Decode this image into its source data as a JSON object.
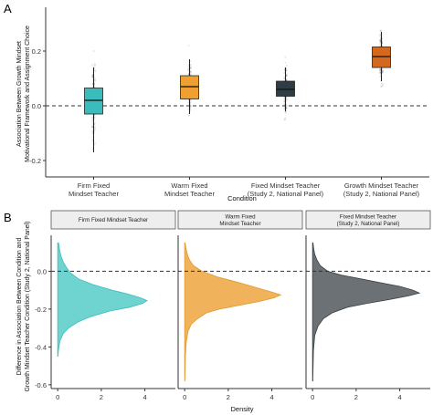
{
  "figure": {
    "panel_a_letter": "A",
    "panel_b_letter": "B"
  },
  "chart_data": [
    {
      "type": "box",
      "panel": "A",
      "xlabel": "Condition",
      "ylabel_line1": "Association Between Growth Mindset",
      "ylabel_line2": "Motivational Framework and Assignment Choice",
      "ylim": [
        -0.26,
        0.36
      ],
      "yticks": [
        -0.2,
        0.0,
        0.2
      ],
      "ytick_labels": [
        "-0.2",
        "0.0",
        "0.2"
      ],
      "reference_line": 0,
      "grid": false,
      "categories": [
        {
          "label_lines": [
            "Firm Fixed",
            "Mindset Teacher"
          ],
          "color": "#3bbcbc",
          "min": -0.17,
          "q1": -0.03,
          "median": 0.02,
          "q3": 0.065,
          "max": 0.14,
          "points_low": -0.24,
          "points_high": 0.2
        },
        {
          "label_lines": [
            "Warm Fixed",
            "Mindset Teacher"
          ],
          "color": "#f0a030",
          "min": -0.03,
          "q1": 0.025,
          "median": 0.07,
          "q3": 0.11,
          "max": 0.17,
          "points_low": -0.1,
          "points_high": 0.22
        },
        {
          "label_lines": [
            "Fixed Mindset Teacher",
            "(Study 2, National Panel)"
          ],
          "color": "#2e3d44",
          "min": -0.02,
          "q1": 0.035,
          "median": 0.06,
          "q3": 0.09,
          "max": 0.14,
          "points_low": -0.08,
          "points_high": 0.2
        },
        {
          "label_lines": [
            "Growth Mindset Teacher",
            "(Study 2, National Panel)"
          ],
          "color": "#d2691e",
          "min": 0.09,
          "q1": 0.14,
          "median": 0.18,
          "q3": 0.215,
          "max": 0.27,
          "points_low": 0.05,
          "points_high": 0.35
        }
      ]
    },
    {
      "type": "density",
      "panel": "B",
      "xlabel": "Density",
      "ylabel_line1": "Difference in Association Between Condition and",
      "ylabel_line2": "Growth Mindset Teacher Condition (Study 2, National Panel)",
      "xlim": [
        -0.3,
        5.4
      ],
      "xticks": [
        0,
        2,
        4
      ],
      "xtick_labels": [
        "0",
        "2",
        "4"
      ],
      "ylim": [
        -0.62,
        0.19
      ],
      "yticks": [
        -0.6,
        -0.4,
        -0.2,
        0.0
      ],
      "ytick_labels": [
        "-0.6",
        "-0.4",
        "-0.2",
        "0.0"
      ],
      "reference_line": 0,
      "facets": [
        {
          "strip_label_lines": [
            "Firm Fixed Mindset Teacher"
          ],
          "color": "#6fd3d0",
          "stroke": "#3bbcbc",
          "y_min": -0.45,
          "y_max": 0.15,
          "density": [
            [
              0.15,
              0.04
            ],
            [
              0.12,
              0.08
            ],
            [
              0.08,
              0.15
            ],
            [
              0.05,
              0.25
            ],
            [
              0.02,
              0.4
            ],
            [
              -0.01,
              0.6
            ],
            [
              -0.04,
              0.95
            ],
            [
              -0.07,
              1.6
            ],
            [
              -0.1,
              2.5
            ],
            [
              -0.12,
              3.2
            ],
            [
              -0.14,
              3.8
            ],
            [
              -0.155,
              4.1
            ],
            [
              -0.17,
              3.9
            ],
            [
              -0.19,
              3.3
            ],
            [
              -0.21,
              2.4
            ],
            [
              -0.24,
              1.5
            ],
            [
              -0.27,
              0.9
            ],
            [
              -0.3,
              0.5
            ],
            [
              -0.33,
              0.25
            ],
            [
              -0.37,
              0.1
            ],
            [
              -0.41,
              0.04
            ],
            [
              -0.45,
              0.01
            ]
          ]
        },
        {
          "strip_label_lines": [
            "Warm Fixed",
            "Mindset Teacher"
          ],
          "color": "#f0b25a",
          "stroke": "#e09a30",
          "y_min": -0.58,
          "y_max": 0.15,
          "density": [
            [
              0.15,
              0.02
            ],
            [
              0.12,
              0.06
            ],
            [
              0.09,
              0.12
            ],
            [
              0.06,
              0.22
            ],
            [
              0.03,
              0.4
            ],
            [
              0.0,
              0.8
            ],
            [
              -0.03,
              1.5
            ],
            [
              -0.06,
              2.5
            ],
            [
              -0.09,
              3.4
            ],
            [
              -0.11,
              4.0
            ],
            [
              -0.125,
              4.4
            ],
            [
              -0.14,
              4.1
            ],
            [
              -0.16,
              3.4
            ],
            [
              -0.18,
              2.5
            ],
            [
              -0.2,
              1.6
            ],
            [
              -0.22,
              1.0
            ],
            [
              -0.25,
              0.6
            ],
            [
              -0.28,
              0.3
            ],
            [
              -0.32,
              0.15
            ],
            [
              -0.38,
              0.07
            ],
            [
              -0.45,
              0.03
            ],
            [
              -0.58,
              0.01
            ]
          ]
        },
        {
          "strip_label_lines": [
            "Fixed Mindset Teacher",
            "(Study 2, National Panel)"
          ],
          "color": "#6b7175",
          "stroke": "#3a3f42",
          "y_min": -0.58,
          "y_max": 0.15,
          "density": [
            [
              0.15,
              0.02
            ],
            [
              0.12,
              0.05
            ],
            [
              0.09,
              0.1
            ],
            [
              0.06,
              0.2
            ],
            [
              0.03,
              0.35
            ],
            [
              0.0,
              0.7
            ],
            [
              -0.02,
              1.3
            ],
            [
              -0.04,
              2.2
            ],
            [
              -0.06,
              3.1
            ],
            [
              -0.08,
              4.0
            ],
            [
              -0.1,
              4.6
            ],
            [
              -0.115,
              4.9
            ],
            [
              -0.13,
              4.4
            ],
            [
              -0.15,
              3.5
            ],
            [
              -0.17,
              2.5
            ],
            [
              -0.19,
              1.6
            ],
            [
              -0.22,
              0.9
            ],
            [
              -0.25,
              0.5
            ],
            [
              -0.29,
              0.25
            ],
            [
              -0.34,
              0.1
            ],
            [
              -0.42,
              0.04
            ],
            [
              -0.58,
              0.01
            ]
          ]
        }
      ]
    }
  ]
}
